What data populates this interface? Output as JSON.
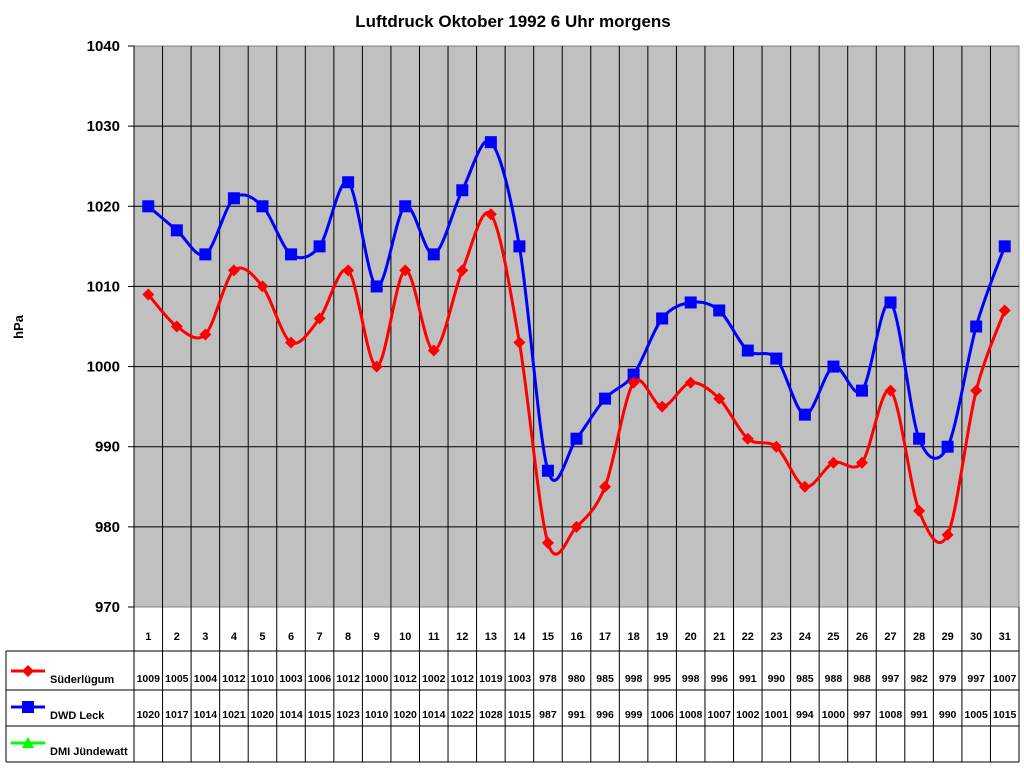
{
  "chart_data": {
    "type": "line",
    "title": "Luftdruck Oktober 1992 6 Uhr morgens",
    "xlabel": "",
    "ylabel": "hPa",
    "ylim": [
      970,
      1040
    ],
    "yticks": [
      970,
      980,
      990,
      1000,
      1010,
      1020,
      1030,
      1040
    ],
    "grid": true,
    "plot_background": "#c0c0c0",
    "legend_position": "data-table-below",
    "categories": [
      "1",
      "2",
      "3",
      "4",
      "5",
      "6",
      "7",
      "8",
      "9",
      "10",
      "11",
      "12",
      "13",
      "14",
      "15",
      "16",
      "17",
      "18",
      "19",
      "20",
      "21",
      "22",
      "23",
      "24",
      "25",
      "26",
      "27",
      "28",
      "29",
      "30",
      "31"
    ],
    "series": [
      {
        "name": "Süderlügum",
        "color": "#ff0000",
        "marker": "diamond",
        "values": [
          1009,
          1005,
          1004,
          1012,
          1010,
          1003,
          1006,
          1012,
          1000,
          1012,
          1002,
          1012,
          1019,
          1003,
          978,
          980,
          985,
          998,
          995,
          998,
          996,
          991,
          990,
          985,
          988,
          988,
          997,
          982,
          979,
          997,
          1007
        ]
      },
      {
        "name": "DWD Leck",
        "color": "#0000ff",
        "marker": "square",
        "values": [
          1020,
          1017,
          1014,
          1021,
          1020,
          1014,
          1015,
          1023,
          1010,
          1020,
          1014,
          1022,
          1028,
          1015,
          987,
          991,
          996,
          999,
          1006,
          1008,
          1007,
          1002,
          1001,
          994,
          1000,
          997,
          1008,
          991,
          990,
          1005,
          1015
        ]
      },
      {
        "name": "DMI Jündewatt",
        "color": "#00ff00",
        "marker": "triangle",
        "values": [
          null,
          null,
          null,
          null,
          null,
          null,
          null,
          null,
          null,
          null,
          null,
          null,
          null,
          null,
          null,
          null,
          null,
          null,
          null,
          null,
          null,
          null,
          null,
          null,
          null,
          null,
          null,
          null,
          null,
          null,
          null
        ]
      }
    ]
  }
}
